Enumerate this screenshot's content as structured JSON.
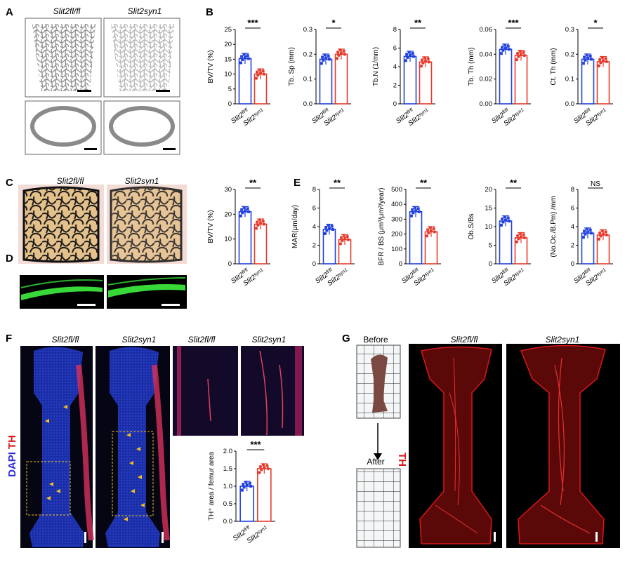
{
  "panels": {
    "A": {
      "letter": "A",
      "col1": "Slit2fl/fl",
      "col2": "Slit2syn1"
    },
    "B": {
      "letter": "B"
    },
    "C": {
      "letter": "C",
      "col1": "Slit2fl/fl",
      "col2": "Slit2syn1"
    },
    "D": {
      "letter": "D"
    },
    "E": {
      "letter": "E"
    },
    "F": {
      "letter": "F",
      "col1": "Slit2fl/fl",
      "col2": "Slit2syn1",
      "col3": "Slit2fl/fl",
      "col4": "Slit2syn1",
      "stain1": "DAPI",
      "stain2": "TH"
    },
    "G": {
      "letter": "G",
      "before": "Before",
      "after": "After",
      "col1": "Slit2fl/fl",
      "col2": "Slit2syn1",
      "stain": "TH"
    }
  },
  "colors": {
    "fl": "#2040e0",
    "syn": "#e83a2a",
    "arrow": "#f0c020",
    "th_red": "#d81818"
  },
  "icons": [
    "down-arrow-icon",
    "arrowhead-icon",
    "scale-bar-icon"
  ],
  "chart_data": [
    {
      "id": "B1",
      "type": "bar",
      "ylabel": "BV/TV (%)",
      "ylim": [
        0,
        25
      ],
      "yticks": [
        0,
        5,
        10,
        15,
        20,
        25
      ],
      "categories": [
        "Slit2fl/fl",
        "Slit2syn1"
      ],
      "values": [
        15.2,
        10.0
      ],
      "sig": "***"
    },
    {
      "id": "B2",
      "type": "bar",
      "ylabel": "Tb. Sp (mm)",
      "ylim": [
        0,
        0.3
      ],
      "yticks": [
        0.0,
        0.1,
        0.2,
        0.3
      ],
      "categories": [
        "Slit2fl/fl",
        "Slit2syn1"
      ],
      "values": [
        0.18,
        0.2
      ],
      "sig": "*"
    },
    {
      "id": "B3",
      "type": "bar",
      "ylabel": "Tb.N (1/mm)",
      "ylim": [
        0,
        8
      ],
      "yticks": [
        0,
        2,
        4,
        6,
        8
      ],
      "categories": [
        "Slit2fl/fl",
        "Slit2syn1"
      ],
      "values": [
        5.1,
        4.5
      ],
      "sig": "**"
    },
    {
      "id": "B4",
      "type": "bar",
      "ylabel": "Tb. Th (mm)",
      "ylim": [
        0,
        0.06
      ],
      "yticks": [
        0.0,
        0.02,
        0.04,
        0.06
      ],
      "categories": [
        "Slit2fl/fl",
        "Slit2syn1"
      ],
      "values": [
        0.044,
        0.039
      ],
      "sig": "***"
    },
    {
      "id": "B5",
      "type": "bar",
      "ylabel": "Ct. Th (mm)",
      "ylim": [
        0,
        0.3
      ],
      "yticks": [
        0.0,
        0.1,
        0.2,
        0.3
      ],
      "categories": [
        "Slit2fl/fl",
        "Slit2syn1"
      ],
      "values": [
        0.18,
        0.17
      ],
      "sig": "*"
    },
    {
      "id": "C1",
      "type": "bar",
      "ylabel": "BV/TV (%)",
      "ylim": [
        0,
        30
      ],
      "yticks": [
        0,
        10,
        20,
        30
      ],
      "categories": [
        "Slit2fl/fl",
        "Slit2syn1"
      ],
      "values": [
        21,
        16
      ],
      "sig": "**"
    },
    {
      "id": "E1",
      "type": "bar",
      "ylabel": "MAR(μm/day)",
      "ylim": [
        0,
        8
      ],
      "yticks": [
        0,
        2,
        4,
        6,
        8
      ],
      "categories": [
        "Slit2fl/fl",
        "Slit2syn1"
      ],
      "values": [
        3.7,
        2.6
      ],
      "sig": "**"
    },
    {
      "id": "E2",
      "type": "bar",
      "ylabel": "BFR / BS (μm³/μm²/year)",
      "ylim": [
        0,
        500
      ],
      "yticks": [
        0,
        100,
        200,
        300,
        400,
        500
      ],
      "categories": [
        "Slit2fl/fl",
        "Slit2syn1"
      ],
      "values": [
        350,
        215
      ],
      "sig": "**"
    },
    {
      "id": "E3",
      "type": "bar",
      "ylabel": "Ob.S/Bs",
      "ylim": [
        0,
        20
      ],
      "yticks": [
        0,
        5,
        10,
        15,
        20
      ],
      "categories": [
        "Slit2fl/fl",
        "Slit2syn1"
      ],
      "values": [
        11.5,
        7.0
      ],
      "sig": "**"
    },
    {
      "id": "E4",
      "type": "bar",
      "ylabel": "(No.Oc./B.Pm) /mm",
      "ylim": [
        0,
        8
      ],
      "yticks": [
        0,
        2,
        4,
        6,
        8
      ],
      "categories": [
        "Slit2fl/fl",
        "Slit2syn1"
      ],
      "values": [
        3.3,
        3.1
      ],
      "sig": "NS"
    },
    {
      "id": "F1",
      "type": "bar",
      "ylabel": "TH⁺ area / femur area",
      "ylim": [
        0,
        2.0
      ],
      "yticks": [
        0.0,
        0.5,
        1.0,
        1.5,
        2.0
      ],
      "categories": [
        "Slit2fl/fl",
        "Slit2syn1"
      ],
      "values": [
        1.0,
        1.5
      ],
      "sig": "***"
    }
  ]
}
